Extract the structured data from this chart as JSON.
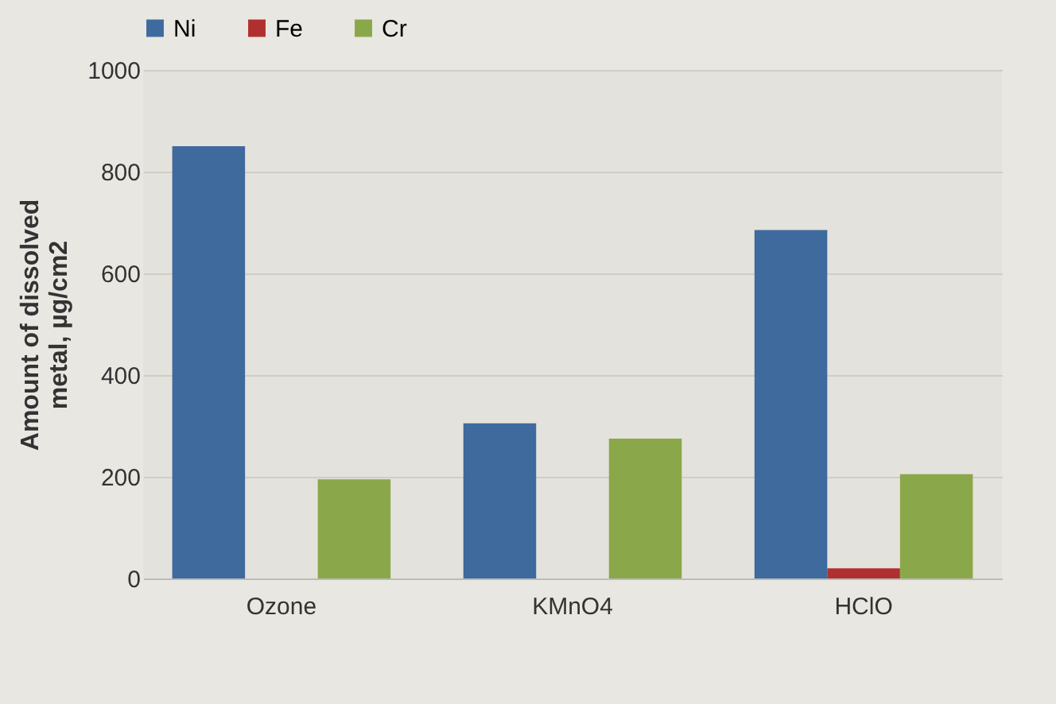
{
  "chart_data": {
    "type": "bar",
    "ylabel": "Amount of dissolved\nmetal, µg/cm2",
    "categories": [
      "Ozone",
      "KMnO4",
      "HClO"
    ],
    "series": [
      {
        "name": "Ni",
        "color": "#3e6a9e",
        "values": [
          850,
          305,
          685
        ]
      },
      {
        "name": "Fe",
        "color": "#b03030",
        "values": [
          0,
          0,
          20
        ]
      },
      {
        "name": "Cr",
        "color": "#8aa84a",
        "values": [
          195,
          275,
          205
        ]
      }
    ],
    "ylim": [
      0,
      1000
    ],
    "yticks": [
      0,
      200,
      400,
      600,
      800,
      1000
    ],
    "grid": "y",
    "legend": "top"
  }
}
